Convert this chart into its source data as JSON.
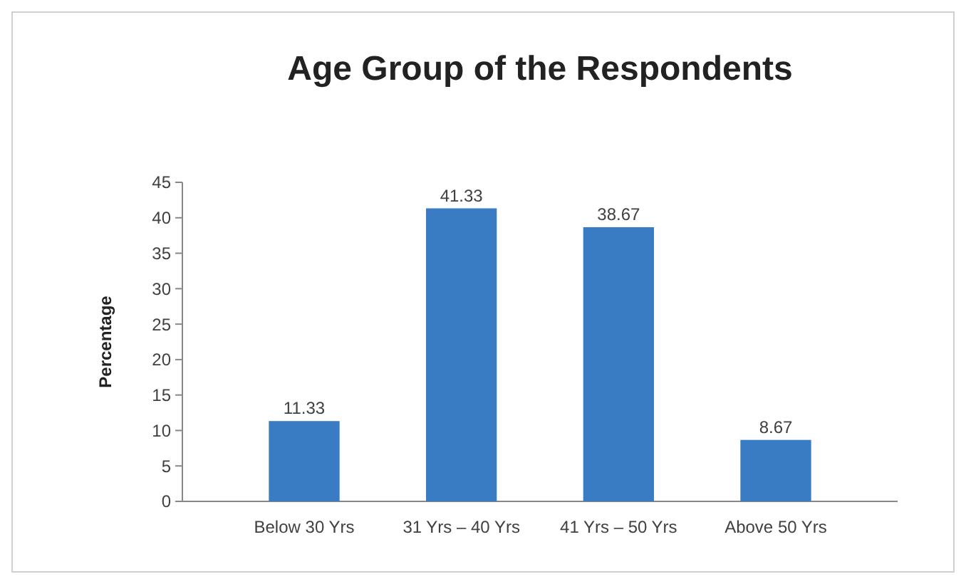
{
  "chart_data": {
    "type": "bar",
    "title": "Age Group of the Respondents",
    "ylabel": "Percentage",
    "categories": [
      "Below 30 Yrs",
      "31 Yrs – 40 Yrs",
      "41 Yrs – 50 Yrs",
      "Above 50 Yrs"
    ],
    "values": [
      11.33,
      41.33,
      38.67,
      8.67
    ],
    "color": "#3a7cc4",
    "ylim": [
      0,
      45
    ],
    "yticks": [
      0,
      5,
      10,
      15,
      20,
      25,
      30,
      35,
      40,
      45
    ],
    "data_labels": true,
    "grid": false
  }
}
